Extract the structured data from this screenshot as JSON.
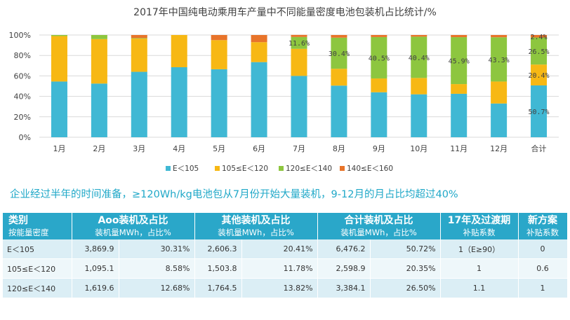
{
  "chart_data": {
    "type": "bar",
    "stacked": true,
    "title": "2017年中国纯电动乘用车产量中不同能量密度电池包装机占比统计/%",
    "categories": [
      "1月",
      "2月",
      "3月",
      "4月",
      "5月",
      "6月",
      "7月",
      "8月",
      "9月",
      "10月",
      "11月",
      "12月",
      "合计"
    ],
    "yticks": [
      "0%",
      "20%",
      "40%",
      "60%",
      "80%",
      "100%"
    ],
    "ylim": [
      0,
      100
    ],
    "legend_position": "bottom",
    "series": [
      {
        "name": "E＜105",
        "color": "#40b8d4",
        "values": [
          54.5,
          52.5,
          64,
          68.5,
          66.5,
          73.5,
          60,
          50.5,
          44,
          42,
          42.5,
          33,
          50.7
        ]
      },
      {
        "name": "105≤E＜120",
        "color": "#f7b814",
        "values": [
          44.5,
          43.5,
          32.5,
          31.5,
          28.5,
          19.5,
          26.5,
          16.5,
          13.5,
          16,
          9.5,
          21.5,
          20.4
        ]
      },
      {
        "name": "120≤E＜140",
        "color": "#8dc63f",
        "values": [
          1,
          4,
          0.5,
          0,
          0,
          0,
          11.6,
          30.4,
          40.5,
          40.4,
          45.9,
          43.3,
          26.5
        ]
      },
      {
        "name": "140≤E＜160",
        "color": "#e8742a",
        "values": [
          0,
          0,
          3,
          0,
          5,
          7,
          2,
          2.6,
          2,
          1.6,
          2.1,
          2.2,
          2.4
        ]
      }
    ],
    "data_labels": [
      {
        "series": 2,
        "category": 6,
        "text": "11.6%"
      },
      {
        "series": 2,
        "category": 7,
        "text": "30.4%"
      },
      {
        "series": 2,
        "category": 8,
        "text": "40.5%"
      },
      {
        "series": 2,
        "category": 9,
        "text": "40.4%"
      },
      {
        "series": 2,
        "category": 10,
        "text": "45.9%"
      },
      {
        "series": 2,
        "category": 11,
        "text": "43.3%"
      },
      {
        "series": 3,
        "category": 12,
        "text": "2.4%"
      },
      {
        "series": 2,
        "category": 12,
        "text": "26.5%"
      },
      {
        "series": 1,
        "category": 12,
        "text": "20.4%"
      },
      {
        "series": 0,
        "category": 12,
        "text": "50.7%"
      }
    ]
  },
  "summary": "企业经过半年的时间准备，≥120Wh/kg电池包从7月份开始大量装机，9-12月的月占比均超过40%",
  "table": {
    "headers": [
      {
        "title": "类别",
        "sub": "按能量密度"
      },
      {
        "title": "Aoo装机及占比",
        "sub": "装机量MWh，占比%"
      },
      {
        "title": "其他装机及占比",
        "sub": "装机量MWh，占比%"
      },
      {
        "title": "合计装机及占比",
        "sub": "装机量MWh，占比%"
      },
      {
        "title": "17年及过渡期",
        "sub": "补贴系数"
      },
      {
        "title": "新方案",
        "sub": "补贴系数"
      }
    ],
    "rows": [
      {
        "cat": "E＜105",
        "aoo_mwh": "3,869.9",
        "aoo_pct": "30.31%",
        "oth_mwh": "2,606.3",
        "oth_pct": "20.41%",
        "tot_mwh": "6,476.2",
        "tot_pct": "50.72%",
        "coef17": "1（E≥90）",
        "coefnew": "0"
      },
      {
        "cat": "105≤E＜120",
        "aoo_mwh": "1,095.1",
        "aoo_pct": "8.58%",
        "oth_mwh": "1,503.8",
        "oth_pct": "11.78%",
        "tot_mwh": "2,598.9",
        "tot_pct": "20.35%",
        "coef17": "1",
        "coefnew": "0.6"
      },
      {
        "cat": "120≤E＜140",
        "aoo_mwh": "1,619.6",
        "aoo_pct": "12.68%",
        "oth_mwh": "1,764.5",
        "oth_pct": "13.82%",
        "tot_mwh": "3,384.1",
        "tot_pct": "26.50%",
        "coef17": "1.1",
        "coefnew": "1"
      }
    ]
  }
}
